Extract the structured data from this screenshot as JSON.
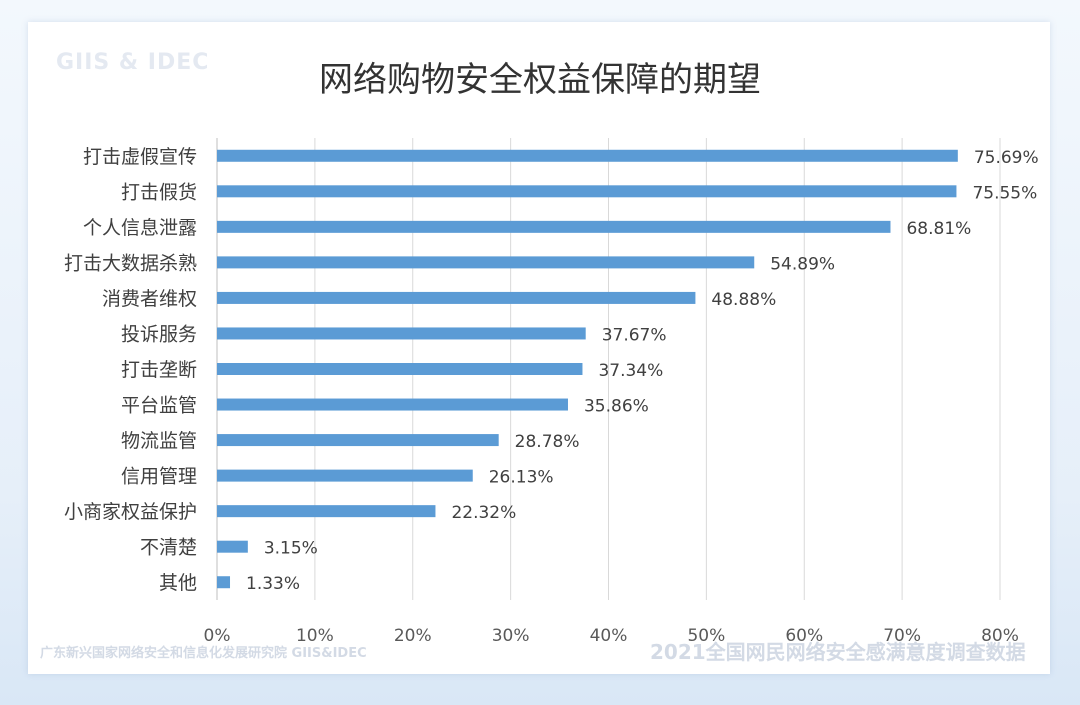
{
  "chart_data": {
    "type": "bar",
    "orientation": "horizontal",
    "title": "网络购物安全权益保障的期望",
    "categories": [
      "打击虚假宣传",
      "打击假货",
      "个人信息泄露",
      "打击大数据杀熟",
      "消费者维权",
      "投诉服务",
      "打击垄断",
      "平台监管",
      "物流监管",
      "信用管理",
      "小商家权益保护",
      "不清楚",
      "其他"
    ],
    "values": [
      75.69,
      75.55,
      68.81,
      54.89,
      48.88,
      37.67,
      37.34,
      35.86,
      28.78,
      26.13,
      22.32,
      3.15,
      1.33
    ],
    "value_labels": [
      "75.69%",
      "75.55%",
      "68.81%",
      "54.89%",
      "48.88%",
      "37.67%",
      "37.34%",
      "35.86%",
      "28.78%",
      "26.13%",
      "22.32%",
      "3.15%",
      "1.33%"
    ],
    "xlim": [
      0,
      80
    ],
    "xticks": [
      "0%",
      "10%",
      "20%",
      "30%",
      "40%",
      "50%",
      "60%",
      "70%",
      "80%"
    ],
    "grid": true,
    "bar_color": "#5b9bd5"
  },
  "watermarks": {
    "top_left": "GIIS & IDEC",
    "bottom_left": "广东新兴国家网络安全和信息化发展研究院 GIIS&IDEC",
    "bottom_right": "2021全国网民网络安全感满意度调查数据"
  }
}
